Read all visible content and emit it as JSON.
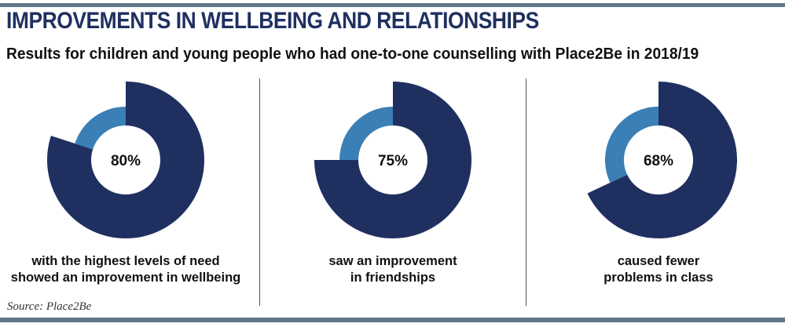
{
  "header": {
    "title": "IMPROVEMENTS IN WELLBEING AND RELATIONSHIPS",
    "subtitle": "Results for children and young people who had one-to-one counselling with Place2Be in 2018/19"
  },
  "colors": {
    "primary": "#1f3060",
    "secondary": "#3a7fb6",
    "rule": "#5e7788"
  },
  "chart_data": [
    {
      "type": "pie",
      "values": [
        80,
        20
      ],
      "center_label": "80%",
      "caption_lines": [
        "with the highest levels of need",
        "showed an improvement in wellbeing"
      ]
    },
    {
      "type": "pie",
      "values": [
        75,
        25
      ],
      "center_label": "75%",
      "caption_lines": [
        "saw an improvement",
        "in friendships"
      ]
    },
    {
      "type": "pie",
      "values": [
        68,
        32
      ],
      "center_label": "68%",
      "caption_lines": [
        "caused fewer",
        "problems in class"
      ]
    }
  ],
  "footer": {
    "source": "Source: Place2Be"
  }
}
